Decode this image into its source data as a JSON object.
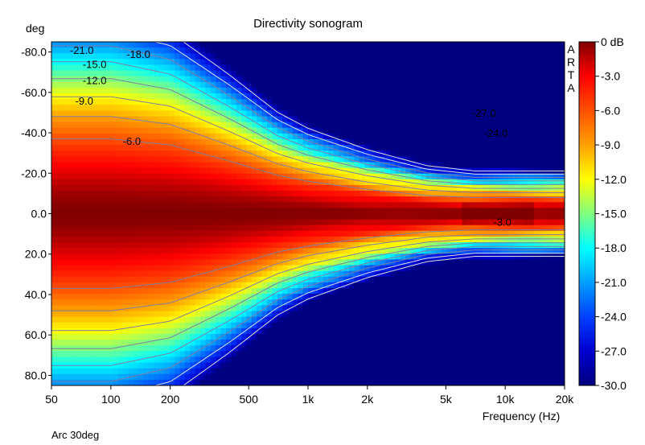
{
  "chart_data": {
    "type": "heatmap",
    "title": "Directivity sonogram",
    "xlabel": "Frequency (Hz)",
    "ylabel": "deg",
    "x_scale": "log",
    "xlim": [
      50,
      20000
    ],
    "ylim": [
      -85,
      85
    ],
    "x_ticks": [
      {
        "value": 50,
        "label": "50"
      },
      {
        "value": 100,
        "label": "100"
      },
      {
        "value": 200,
        "label": "200"
      },
      {
        "value": 500,
        "label": "500"
      },
      {
        "value": 1000,
        "label": "1k"
      },
      {
        "value": 2000,
        "label": "2k"
      },
      {
        "value": 5000,
        "label": "5k"
      },
      {
        "value": 10000,
        "label": "10k"
      },
      {
        "value": 20000,
        "label": "20k"
      }
    ],
    "y_ticks": [
      {
        "value": -80,
        "label": "-80.0"
      },
      {
        "value": -60,
        "label": "-60.0"
      },
      {
        "value": -40,
        "label": "-40.0"
      },
      {
        "value": -20,
        "label": "-20.0"
      },
      {
        "value": 0,
        "label": "0.0"
      },
      {
        "value": 20,
        "label": "20.0"
      },
      {
        "value": 40,
        "label": "40.0"
      },
      {
        "value": 60,
        "label": "60.0"
      },
      {
        "value": 80,
        "label": "80.0"
      }
    ],
    "colorbar": {
      "range": [
        -30,
        0
      ],
      "unit": "dB",
      "ticks": [
        {
          "value": 0,
          "label": "0 dB"
        },
        {
          "value": -3,
          "label": "-3.0"
        },
        {
          "value": -6,
          "label": "-6.0"
        },
        {
          "value": -9,
          "label": "-9.0"
        },
        {
          "value": -12,
          "label": "-12.0"
        },
        {
          "value": -15,
          "label": "-15.0"
        },
        {
          "value": -18,
          "label": "-18.0"
        },
        {
          "value": -21,
          "label": "-21.0"
        },
        {
          "value": -24,
          "label": "-24.0"
        },
        {
          "value": -27,
          "label": "-27.0"
        },
        {
          "value": -30,
          "label": "-30.0"
        }
      ]
    },
    "contour_levels": [
      -3,
      -6,
      -9,
      -12,
      -15,
      -18,
      -21,
      -24,
      -27
    ],
    "contour_labels": [
      {
        "text": "-21.0",
        "freq": 62,
        "angle": -81
      },
      {
        "text": "-18.0",
        "freq": 120,
        "angle": -79
      },
      {
        "text": "-15.0",
        "freq": 72,
        "angle": -74
      },
      {
        "text": "-12.0",
        "freq": 72,
        "angle": -66
      },
      {
        "text": "-9.0",
        "freq": 66,
        "angle": -56
      },
      {
        "text": "-6.0",
        "freq": 115,
        "angle": -36
      },
      {
        "text": "-27.0",
        "freq": 6800,
        "angle": -50
      },
      {
        "text": "-24.0",
        "freq": 7800,
        "angle": -40
      },
      {
        "text": "-3.0",
        "freq": 8700,
        "angle": 4
      }
    ],
    "beamwidth_6db": [
      {
        "f": 50,
        "a": 37
      },
      {
        "f": 100,
        "a": 37
      },
      {
        "f": 200,
        "a": 34
      },
      {
        "f": 400,
        "a": 26
      },
      {
        "f": 700,
        "a": 19
      },
      {
        "f": 1000,
        "a": 16
      },
      {
        "f": 2000,
        "a": 12
      },
      {
        "f": 4000,
        "a": 9
      },
      {
        "f": 7000,
        "a": 8
      },
      {
        "f": 10000,
        "a": 8
      },
      {
        "f": 20000,
        "a": 8
      }
    ],
    "vendor_mark": "ARTA",
    "footnote": "Arc 30deg"
  }
}
